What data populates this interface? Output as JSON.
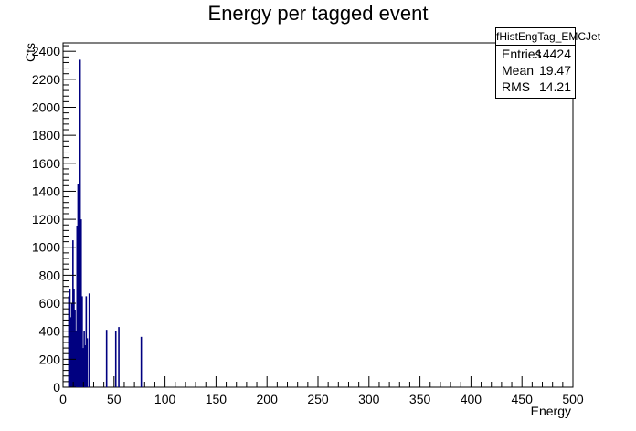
{
  "chart_data": {
    "type": "bar",
    "title": "Energy per tagged event",
    "xlabel": "Energy",
    "ylabel": "Cts",
    "xlim": [
      0,
      500
    ],
    "ylim": [
      0,
      2460
    ],
    "x_ticks": [
      0,
      50,
      100,
      150,
      200,
      250,
      300,
      350,
      400,
      450,
      500
    ],
    "y_ticks": [
      0,
      200,
      400,
      600,
      800,
      1000,
      1200,
      1400,
      1600,
      1800,
      2000,
      2200,
      2400
    ],
    "bar_color": "#000080",
    "bins": [
      {
        "x": 5,
        "y": 650
      },
      {
        "x": 6,
        "y": 700
      },
      {
        "x": 7,
        "y": 500
      },
      {
        "x": 8,
        "y": 600
      },
      {
        "x": 9,
        "y": 1050
      },
      {
        "x": 10,
        "y": 700
      },
      {
        "x": 11,
        "y": 550
      },
      {
        "x": 12,
        "y": 400
      },
      {
        "x": 13,
        "y": 1150
      },
      {
        "x": 14,
        "y": 1450
      },
      {
        "x": 15,
        "y": 1400
      },
      {
        "x": 16,
        "y": 2340
      },
      {
        "x": 17,
        "y": 1200
      },
      {
        "x": 18,
        "y": 650
      },
      {
        "x": 19,
        "y": 280
      },
      {
        "x": 20,
        "y": 400
      },
      {
        "x": 21,
        "y": 300
      },
      {
        "x": 22,
        "y": 650
      },
      {
        "x": 23,
        "y": 350
      },
      {
        "x": 25,
        "y": 670
      },
      {
        "x": 42,
        "y": 410
      },
      {
        "x": 51,
        "y": 400
      },
      {
        "x": 54,
        "y": 430
      },
      {
        "x": 76,
        "y": 360
      }
    ]
  },
  "statbox": {
    "name": "fHistEngTag_EMCJet",
    "entries_label": "Entries",
    "entries_value": "14424",
    "mean_label": "Mean",
    "mean_value": "19.47",
    "rms_label": "RMS",
    "rms_value": "14.21"
  }
}
